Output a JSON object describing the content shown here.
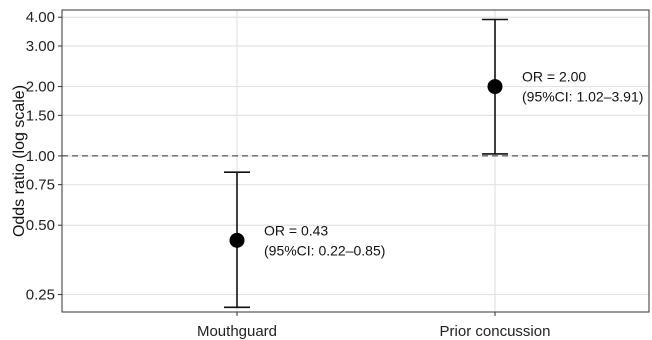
{
  "chart_data": {
    "type": "scatter",
    "ylabel": "Odds ratio (log scale)",
    "yscale": "log",
    "ylim": [
      0.21,
      4.3
    ],
    "yticks": [
      "4.00",
      "3.00",
      "2.00",
      "1.50",
      "1.00",
      "0.75",
      "0.50",
      "0.25"
    ],
    "yticks_values": [
      4.0,
      3.0,
      2.0,
      1.5,
      1.0,
      0.75,
      0.5,
      0.25
    ],
    "reference_line": 1.0,
    "grid": true,
    "categories": [
      "Mouthguard",
      "Prior concussion"
    ],
    "points": [
      {
        "category": "Mouthguard",
        "or": 0.43,
        "ci_low": 0.22,
        "ci_high": 0.85,
        "label_line1": "OR = 0.43",
        "label_line2": "(95%CI: 0.22–0.85)"
      },
      {
        "category": "Prior concussion",
        "or": 2.0,
        "ci_low": 1.02,
        "ci_high": 3.91,
        "label_line1": "OR = 2.00",
        "label_line2": "(95%CI: 1.02–3.91)"
      }
    ]
  }
}
